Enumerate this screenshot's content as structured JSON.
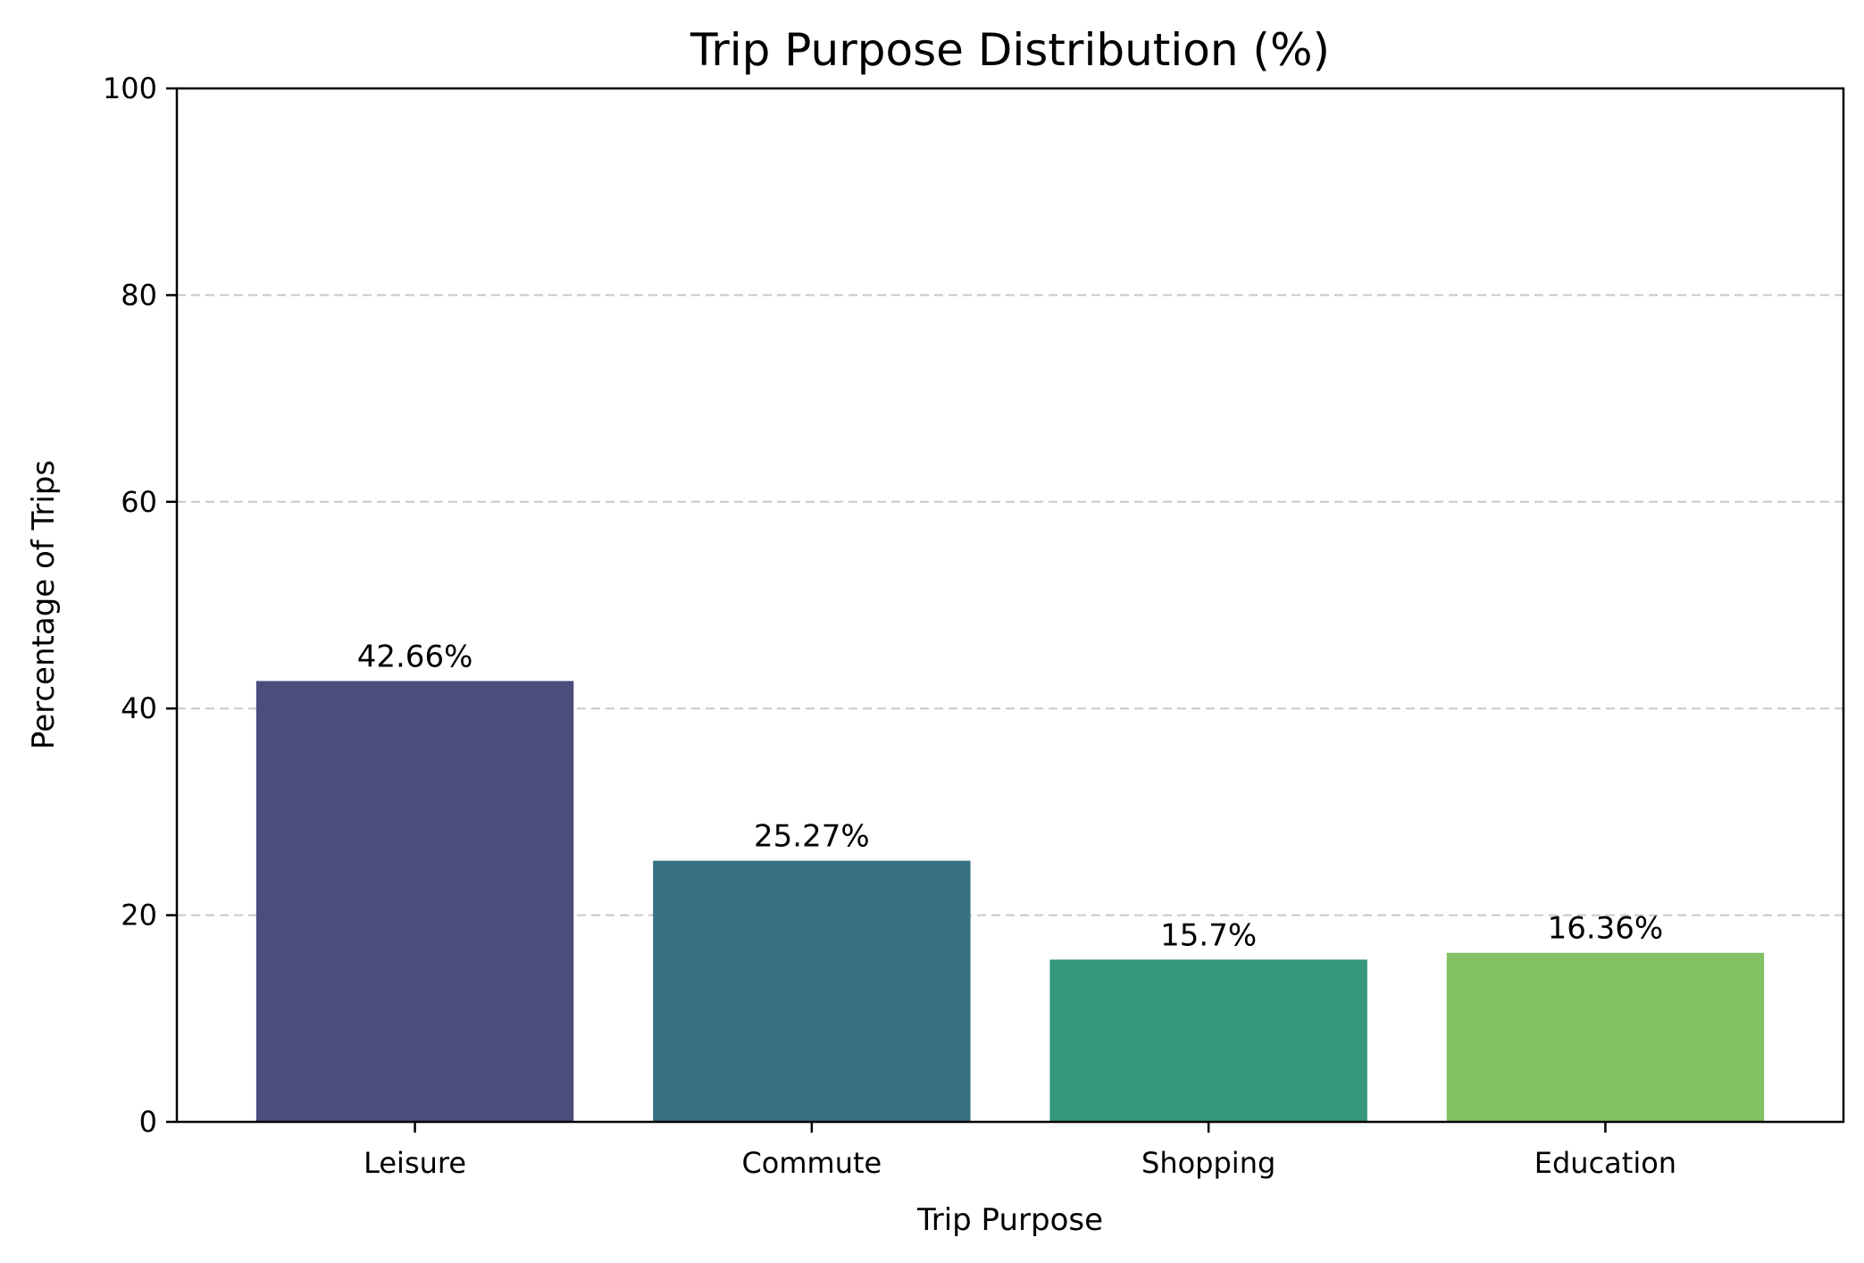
{
  "chart_data": {
    "type": "bar",
    "title": "Trip Purpose Distribution (%)",
    "xlabel": "Trip Purpose",
    "ylabel": "Percentage of Trips",
    "categories": [
      "Leisure",
      "Commute",
      "Shopping",
      "Education"
    ],
    "values": [
      42.66,
      25.27,
      15.7,
      16.36
    ],
    "value_labels": [
      "42.66%",
      "25.27%",
      "15.7%",
      "16.36%"
    ],
    "colors": [
      "#4b4e7c",
      "#387282",
      "#36977d",
      "#82c163"
    ],
    "ylim": [
      0,
      100
    ],
    "yticks": [
      0,
      20,
      40,
      60,
      80,
      100
    ],
    "ytick_labels": [
      "0",
      "20",
      "40",
      "60",
      "80",
      "100"
    ],
    "grid": "y dashed",
    "legend": "none"
  }
}
